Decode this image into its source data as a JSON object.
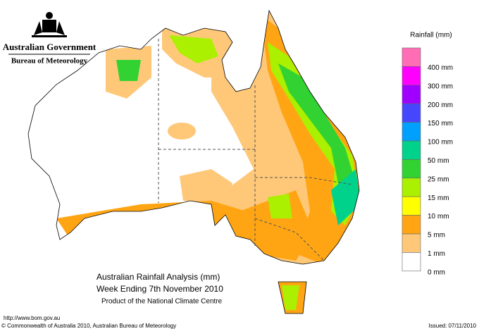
{
  "header": {
    "government": "Australian Government",
    "bureau": "Bureau of Meteorology"
  },
  "legend": {
    "title": "Rainfall (mm)",
    "items": [
      {
        "label": "400 mm",
        "color": "#ff6eb4"
      },
      {
        "label": "300 mm",
        "color": "#ff00ff"
      },
      {
        "label": "200 mm",
        "color": "#a000ff"
      },
      {
        "label": "150 mm",
        "color": "#4646ff"
      },
      {
        "label": "100 mm",
        "color": "#00a0ff"
      },
      {
        "label": "50 mm",
        "color": "#00d28c"
      },
      {
        "label": "25 mm",
        "color": "#32d232"
      },
      {
        "label": "15 mm",
        "color": "#aaf000"
      },
      {
        "label": "10 mm",
        "color": "#ffff00"
      },
      {
        "label": "5 mm",
        "color": "#ffa514"
      },
      {
        "label": "1 mm",
        "color": "#ffc878"
      },
      {
        "label": "0 mm",
        "color": "#ffffff"
      }
    ]
  },
  "caption": {
    "title": "Australian Rainfall Analysis (mm)",
    "subtitle": "Week Ending 7th November 2010",
    "note": "Product of the National Climate Centre"
  },
  "footer": {
    "url": "http://www.bom.gov.au",
    "copyright": "© Commonwealth of Australia 2010, Australian Bureau of Meteorology",
    "issued": "Issued: 07/11/2010"
  }
}
